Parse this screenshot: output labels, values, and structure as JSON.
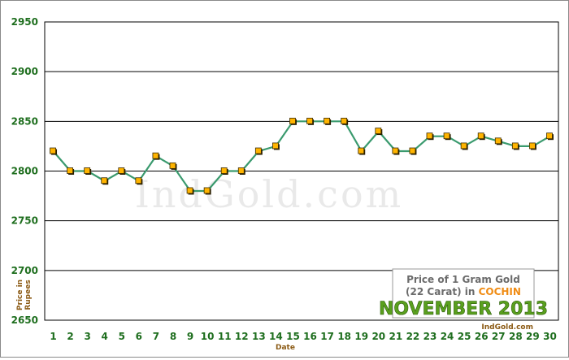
{
  "chart_data": {
    "type": "line",
    "x": [
      1,
      2,
      3,
      4,
      5,
      6,
      7,
      8,
      9,
      10,
      11,
      12,
      13,
      14,
      15,
      16,
      17,
      18,
      19,
      20,
      21,
      22,
      23,
      24,
      25,
      26,
      27,
      28,
      29,
      30
    ],
    "series": [
      {
        "values": [
          2820,
          2800,
          2800,
          2790,
          2800,
          2790,
          2815,
          2805,
          2780,
          2780,
          2800,
          2800,
          2820,
          2825,
          2850,
          2850,
          2850,
          2850,
          2820,
          2840,
          2820,
          2820,
          2835,
          2835,
          2825,
          2835,
          2830,
          2825,
          2825,
          2835
        ]
      }
    ],
    "ylim": [
      2650,
      2950
    ],
    "yticks": [
      2650,
      2700,
      2750,
      2800,
      2850,
      2900,
      2950
    ],
    "xlabel": "Date",
    "ylabel_line1": "Price in",
    "ylabel_line2": "Rupees",
    "grid": "horizontal",
    "legend_box": {
      "line1": "Price of 1 Gram Gold",
      "line2_prefix": "(22 Carat) in ",
      "city": "COCHIN",
      "month_year": "NOVEMBER 2013"
    },
    "watermark": "IndGold.com",
    "credit": "IndGold.com",
    "colors": {
      "line": "#3a9a6e",
      "marker_fill": "#ffb400",
      "marker_edge": "#3a2a00",
      "tick_text": "#1e6e1e",
      "axis_title": "#8b5a14"
    }
  }
}
